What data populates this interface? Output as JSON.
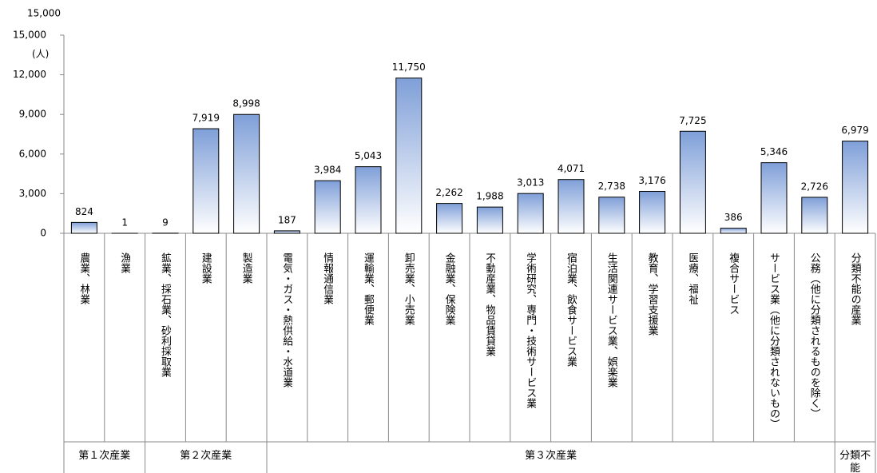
{
  "chart_data": {
    "type": "bar",
    "annotations": [
      "15,000",
      "(人)"
    ],
    "categories": [
      "農業、林業",
      "漁業",
      "鉱業、採石業、砂利採取業",
      "建設業",
      "製造業",
      "電気・ガス・熱供給・水道業",
      "情報通信業",
      "運輸業、郵便業",
      "卸売業、小売業",
      "金融業、保険業",
      "不動産業、物品賃貸業",
      "学術研究、専門・技術サービス業",
      "宿泊業、飲食サービス業",
      "生活関連サービス業、娯楽業",
      "教育、学習支援業",
      "医療、福祉",
      "複合サービス",
      "サービス業（他に分類されないもの）",
      "公務（他に分類されるものを除く）",
      "分類不能の産業"
    ],
    "values": [
      824,
      1,
      9,
      7919,
      8998,
      187,
      3984,
      5043,
      11750,
      2262,
      1988,
      3013,
      4071,
      2738,
      3176,
      7725,
      386,
      5346,
      2726,
      6979
    ],
    "value_labels": [
      "824",
      "1",
      "9",
      "7,919",
      "8,998",
      "187",
      "3,984",
      "5,043",
      "11,750",
      "2,262",
      "1,988",
      "3,013",
      "4,071",
      "2,738",
      "3,176",
      "7,725",
      "386",
      "5,346",
      "2,726",
      "6,979"
    ],
    "groups": [
      "第１次産業",
      "第２次産業",
      "第３次産業",
      "分類不能"
    ],
    "color": "#7f9fd8",
    "ylim": [
      0,
      15000
    ],
    "yticks": [
      0,
      {
        "value": 3000,
        "label": "3,000"
      },
      {
        "value": 6000,
        "label": "6,000"
      },
      {
        "value": 9000,
        "label": "9,000"
      },
      {
        "value": 12000,
        "label": "12,000"
      },
      {
        "value": 15000,
        "label": "15,000"
      }
    ]
  }
}
